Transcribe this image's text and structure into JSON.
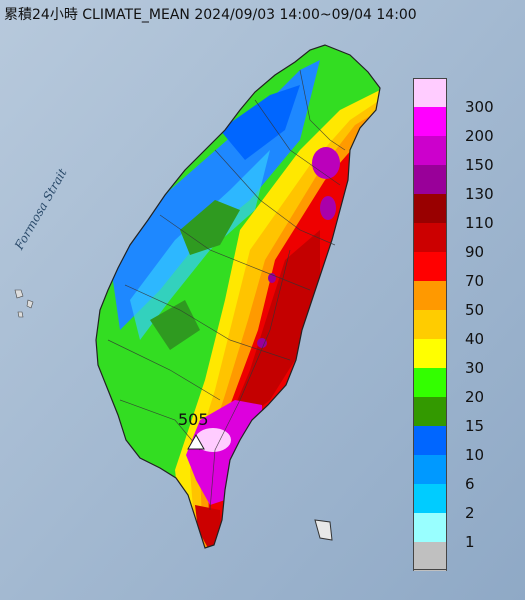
{
  "header": {
    "title": "累積24小時 CLIMATE_MEAN 2024/09/03 14:00~09/04 14:00"
  },
  "map": {
    "sea_label": "Formosa Strait",
    "max_station_value": "505",
    "station_marker": "triangle-icon"
  },
  "legend": {
    "items": [
      {
        "label": "300",
        "color": "#ffccff"
      },
      {
        "label": "200",
        "color": "#ff00ff"
      },
      {
        "label": "150",
        "color": "#cc00cc"
      },
      {
        "label": "130",
        "color": "#990099"
      },
      {
        "label": "110",
        "color": "#990000"
      },
      {
        "label": "90",
        "color": "#cc0000"
      },
      {
        "label": "70",
        "color": "#ff0000"
      },
      {
        "label": "50",
        "color": "#ff9900"
      },
      {
        "label": "40",
        "color": "#ffcc00"
      },
      {
        "label": "30",
        "color": "#ffff00"
      },
      {
        "label": "20",
        "color": "#33ff00"
      },
      {
        "label": "15",
        "color": "#339900"
      },
      {
        "label": "10",
        "color": "#0066ff"
      },
      {
        "label": "6",
        "color": "#0099ff"
      },
      {
        "label": "2",
        "color": "#00ccff"
      },
      {
        "label": "1",
        "color": "#99ffff"
      },
      {
        "label": "",
        "color": "#c0c0c0"
      }
    ],
    "label_1_text": "1"
  }
}
